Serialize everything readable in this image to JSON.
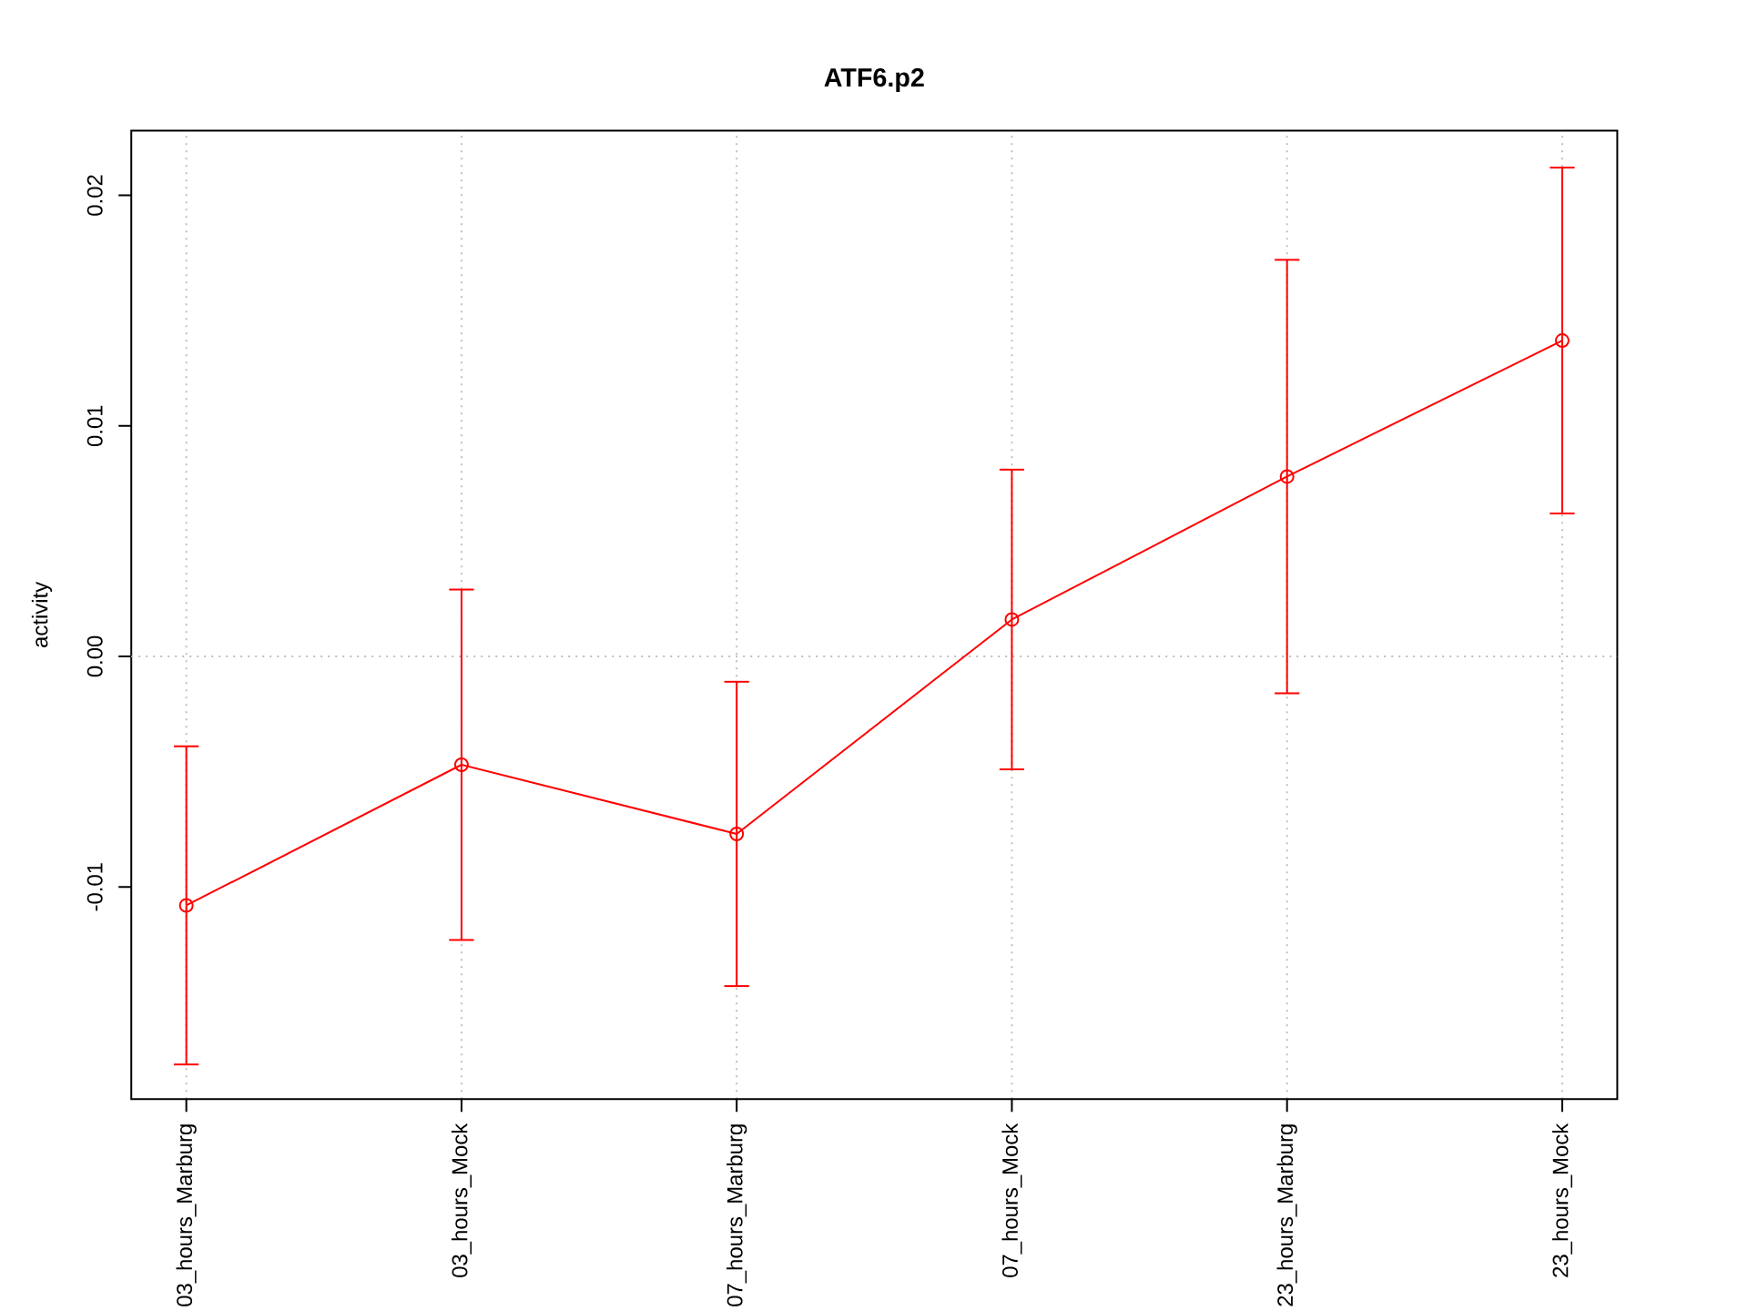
{
  "chart_data": {
    "type": "line",
    "title": "ATF6.p2",
    "ylabel": "activity",
    "categories": [
      "03_hours_Marburg",
      "03_hours_Mock",
      "07_hours_Marburg",
      "07_hours_Mock",
      "23_hours_Marburg",
      "23_hours_Mock"
    ],
    "values": [
      -0.0108,
      -0.0047,
      -0.0077,
      0.0016,
      0.0078,
      0.0137
    ],
    "errors": [
      0.0069,
      0.0076,
      0.0066,
      0.0065,
      0.0094,
      0.0075
    ],
    "color": "#ff0000",
    "marker": "circle",
    "line_style": "solid",
    "ylim": [
      -0.0192,
      0.0228
    ],
    "yticks": [
      -0.01,
      {
        "value": 0,
        "label": "0.00"
      },
      0.01,
      0.02
    ],
    "grid": "x",
    "ref_lines": [
      {
        "axis": "y",
        "value": 0,
        "color": "#bebebe",
        "line_style": "dotted"
      }
    ]
  }
}
